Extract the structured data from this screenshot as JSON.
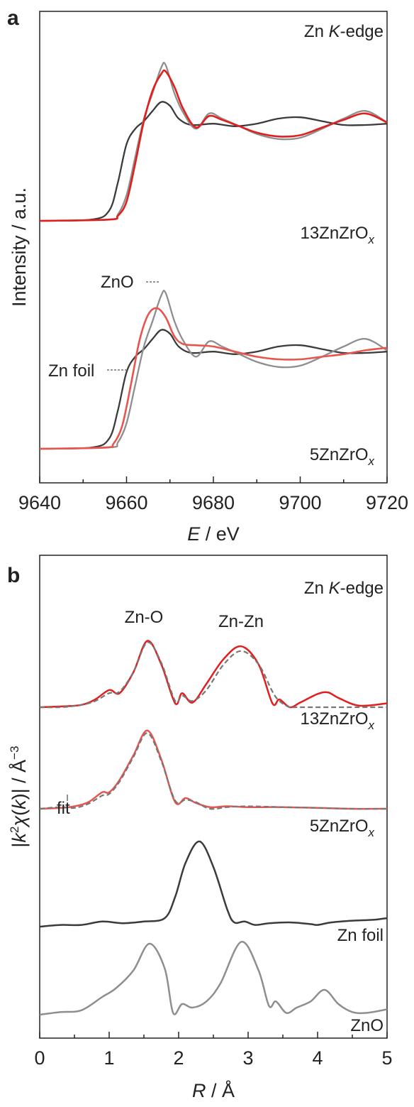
{
  "colors": {
    "zn_foil": "#3b3b3b",
    "zno": "#8e8e8e",
    "sample_13": "#e0201f",
    "sample_5": "#e8554f",
    "fit": "#777777"
  },
  "chart_data": [
    {
      "panel": "a",
      "type": "line",
      "xlabel_parts": [
        "E",
        " / eV"
      ],
      "ylabel": "Intensity / a.u.",
      "xlim": [
        9640,
        9720
      ],
      "x_ticks": [
        "9640",
        "9660",
        "9680",
        "9700",
        "9720"
      ],
      "annotations": {
        "edge": [
          "Zn ",
          "K",
          "-edge"
        ],
        "sample_top": [
          "13ZnZrO",
          "x"
        ],
        "sample_bottom": [
          "5ZnZrO",
          "x"
        ],
        "zno": "ZnO",
        "zn_foil": "Zn foil"
      },
      "groups": [
        {
          "sample": "13ZnZrO_x",
          "series": [
            {
              "ref": "Zn foil",
              "x": [
                9640,
                9652,
                9656,
                9658,
                9660,
                9662,
                9664,
                9666,
                9668,
                9670,
                9672,
                9675,
                9680,
                9685,
                9690,
                9695,
                9700,
                9705,
                9710,
                9715,
                9720
              ],
              "y": [
                0.0,
                0.01,
                0.08,
                0.3,
                0.6,
                0.72,
                0.78,
                0.86,
                0.93,
                0.9,
                0.8,
                0.75,
                0.76,
                0.74,
                0.76,
                0.8,
                0.81,
                0.78,
                0.75,
                0.75,
                0.76
              ]
            },
            {
              "ref": "ZnO",
              "x": [
                9640,
                9656,
                9658,
                9660,
                9662,
                9664,
                9666,
                9668,
                9669,
                9671,
                9673,
                9676,
                9679,
                9682,
                9686,
                9690,
                9695,
                9700,
                9705,
                9710,
                9715,
                9720
              ],
              "y": [
                0.0,
                0.01,
                0.05,
                0.2,
                0.5,
                0.8,
                1.0,
                1.2,
                1.22,
                1.0,
                0.85,
                0.72,
                0.84,
                0.8,
                0.74,
                0.68,
                0.64,
                0.65,
                0.72,
                0.8,
                0.86,
                0.77
              ]
            },
            {
              "ref": "13ZnZrO_x",
              "x": [
                9640,
                9656,
                9658,
                9660,
                9662,
                9664,
                9666,
                9668,
                9669,
                9671,
                9673,
                9676,
                9679,
                9682,
                9686,
                9690,
                9695,
                9700,
                9705,
                9710,
                9715,
                9720
              ],
              "y": [
                0.0,
                0.01,
                0.04,
                0.15,
                0.45,
                0.78,
                1.02,
                1.15,
                1.17,
                1.05,
                0.88,
                0.73,
                0.82,
                0.79,
                0.74,
                0.69,
                0.66,
                0.67,
                0.73,
                0.79,
                0.84,
                0.77
              ]
            }
          ]
        },
        {
          "sample": "5ZnZrO_x",
          "series": [
            {
              "ref": "Zn foil",
              "x": [
                9640,
                9652,
                9656,
                9658,
                9660,
                9662,
                9664,
                9666,
                9668,
                9670,
                9672,
                9675,
                9680,
                9685,
                9690,
                9695,
                9700,
                9705,
                9710,
                9715,
                9720
              ],
              "y": [
                0.0,
                0.01,
                0.08,
                0.3,
                0.6,
                0.72,
                0.78,
                0.86,
                0.93,
                0.9,
                0.8,
                0.75,
                0.76,
                0.74,
                0.76,
                0.8,
                0.81,
                0.78,
                0.75,
                0.75,
                0.76
              ]
            },
            {
              "ref": "ZnO",
              "x": [
                9640,
                9656,
                9658,
                9660,
                9662,
                9664,
                9666,
                9668,
                9669,
                9671,
                9673,
                9676,
                9679,
                9682,
                9686,
                9690,
                9695,
                9700,
                9705,
                9710,
                9715,
                9720
              ],
              "y": [
                0.0,
                0.01,
                0.05,
                0.2,
                0.5,
                0.8,
                1.0,
                1.2,
                1.22,
                1.0,
                0.85,
                0.72,
                0.84,
                0.8,
                0.74,
                0.68,
                0.64,
                0.65,
                0.72,
                0.8,
                0.86,
                0.77
              ]
            },
            {
              "ref": "5ZnZrO_x",
              "x": [
                9640,
                9655,
                9657,
                9659,
                9661,
                9663,
                9665,
                9667,
                9669,
                9671,
                9673,
                9676,
                9680,
                9685,
                9690,
                9695,
                9700,
                9705,
                9710,
                9715,
                9720
              ],
              "y": [
                0.0,
                0.01,
                0.04,
                0.18,
                0.5,
                0.85,
                1.05,
                1.1,
                1.03,
                0.88,
                0.82,
                0.81,
                0.8,
                0.76,
                0.72,
                0.7,
                0.7,
                0.72,
                0.74,
                0.77,
                0.79
              ]
            }
          ]
        }
      ]
    },
    {
      "panel": "b",
      "type": "line",
      "xlabel_parts": [
        "R",
        " / Å"
      ],
      "ylabel_parts": [
        "|",
        "k",
        "2",
        "χ",
        "(",
        "k",
        ")| / Å",
        "−3"
      ],
      "xlim": [
        0,
        5
      ],
      "x_ticks": [
        "0",
        "1",
        "2",
        "3",
        "4",
        "5"
      ],
      "annotations": {
        "edge": [
          "Zn ",
          "K",
          "-edge"
        ],
        "peak_1": "Zn-O",
        "peak_2": "Zn-Zn",
        "sample_top": [
          "13ZnZrO",
          "x"
        ],
        "sample_bottom": [
          "5ZnZrO",
          "x"
        ],
        "fit": "fit",
        "zn_foil": "Zn foil",
        "zno": "ZnO"
      },
      "series": [
        {
          "name": "13ZnZrO_x",
          "x": [
            0,
            0.3,
            0.6,
            0.8,
            1.0,
            1.15,
            1.35,
            1.55,
            1.75,
            1.95,
            2.05,
            2.2,
            2.4,
            2.65,
            2.9,
            3.15,
            3.35,
            3.45,
            3.6,
            3.75,
            4.0,
            4.15,
            4.3,
            4.6,
            5.0
          ],
          "y": [
            0.0,
            0.01,
            0.03,
            0.1,
            0.22,
            0.18,
            0.45,
            0.85,
            0.55,
            0.05,
            0.18,
            0.06,
            0.3,
            0.62,
            0.78,
            0.55,
            0.05,
            0.1,
            0.0,
            0.06,
            0.17,
            0.19,
            0.12,
            0.02,
            0.05
          ]
        },
        {
          "name": "13ZnZrO_x fit",
          "dashed": true,
          "x": [
            0,
            0.3,
            0.6,
            0.8,
            1.0,
            1.15,
            1.35,
            1.55,
            1.75,
            1.95,
            2.05,
            2.2,
            2.4,
            2.65,
            2.9,
            3.15,
            3.35,
            3.45,
            3.6,
            3.75,
            5.0
          ],
          "y": [
            0.0,
            0.0,
            0.03,
            0.08,
            0.18,
            0.2,
            0.45,
            0.83,
            0.57,
            0.08,
            0.15,
            0.08,
            0.22,
            0.55,
            0.72,
            0.55,
            0.2,
            0.08,
            0.0,
            0.0,
            0.0
          ]
        },
        {
          "name": "5ZnZrO_x",
          "x": [
            0,
            0.3,
            0.5,
            0.7,
            0.9,
            1.0,
            1.15,
            1.35,
            1.55,
            1.75,
            1.95,
            2.1,
            2.25,
            2.45,
            2.7,
            3.0,
            3.5,
            4.0,
            4.5,
            5.0
          ],
          "y": [
            0.0,
            0.01,
            0.03,
            0.08,
            0.2,
            0.2,
            0.35,
            0.65,
            0.95,
            0.6,
            0.08,
            0.13,
            0.07,
            0.02,
            0.03,
            0.02,
            0.02,
            0.01,
            0.0,
            0.0
          ]
        },
        {
          "name": "5ZnZrO_x fit",
          "dashed": true,
          "x": [
            0,
            0.3,
            0.5,
            0.7,
            0.9,
            1.0,
            1.15,
            1.35,
            1.55,
            1.75,
            1.95,
            2.1,
            2.25,
            2.45,
            2.7,
            3.0,
            3.5,
            4.0,
            4.5,
            5.0
          ],
          "y": [
            0.0,
            0.02,
            0.01,
            0.06,
            0.16,
            0.18,
            0.33,
            0.63,
            0.92,
            0.58,
            0.1,
            0.11,
            0.08,
            0.0,
            0.02,
            0.03,
            0.02,
            0.01,
            0.0,
            0.0
          ]
        },
        {
          "name": "Zn foil",
          "x": [
            0,
            0.3,
            0.6,
            0.9,
            1.2,
            1.5,
            1.8,
            1.95,
            2.1,
            2.3,
            2.5,
            2.7,
            2.8,
            2.95,
            3.1,
            3.3,
            3.6,
            3.9,
            4.0,
            4.2,
            4.5,
            4.8,
            5.0
          ],
          "y": [
            0.0,
            0.02,
            0.02,
            0.06,
            0.04,
            0.06,
            0.1,
            0.35,
            0.75,
            1.0,
            0.7,
            0.2,
            0.05,
            0.06,
            0.02,
            0.04,
            0.05,
            0.03,
            0.02,
            0.05,
            0.07,
            0.08,
            0.1
          ]
        },
        {
          "name": "ZnO",
          "x": [
            0,
            0.3,
            0.6,
            0.9,
            1.1,
            1.35,
            1.58,
            1.8,
            1.92,
            2.05,
            2.2,
            2.4,
            2.6,
            2.9,
            3.15,
            3.3,
            3.4,
            3.55,
            3.7,
            3.9,
            4.1,
            4.3,
            4.5,
            4.7,
            5.0
          ],
          "y": [
            0.0,
            0.03,
            0.05,
            0.2,
            0.3,
            0.5,
            0.8,
            0.52,
            0.02,
            0.12,
            0.08,
            0.15,
            0.35,
            0.82,
            0.5,
            0.1,
            0.15,
            0.02,
            0.08,
            0.15,
            0.28,
            0.12,
            0.03,
            0.02,
            0.06
          ]
        }
      ]
    }
  ]
}
